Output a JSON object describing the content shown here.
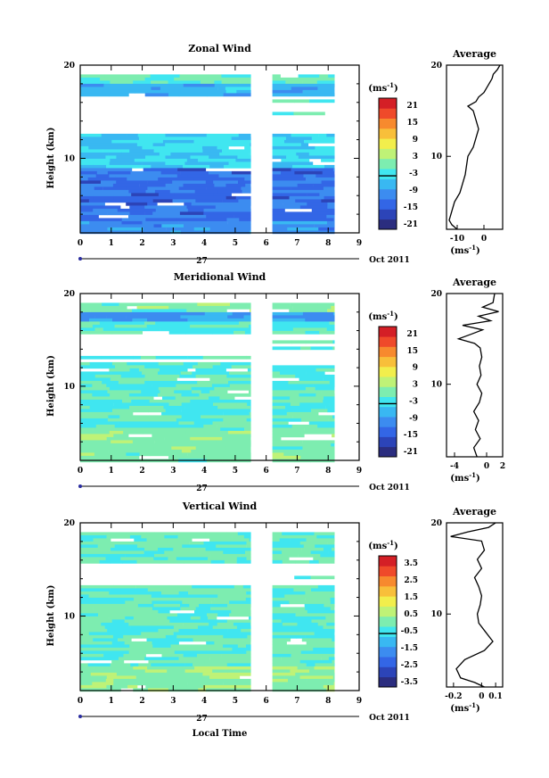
{
  "axis_units": {
    "date_label": "27",
    "month_label": "Oct 2011",
    "xlabel": "Local Time",
    "ylabel": "Height (km)",
    "unit_label": "(ms",
    "unit_exp": "-1",
    "unit_close": ")"
  },
  "chart_data": [
    {
      "type": "heatmap",
      "title": "Zonal Wind",
      "ylabel": "Height (km)",
      "x_ticks": [
        "0",
        "1",
        "2",
        "3",
        "4",
        "5",
        "6",
        "7",
        "8",
        "9"
      ],
      "y_ticks": [
        "10",
        "20"
      ],
      "xlim": [
        0,
        9
      ],
      "ylim": [
        2,
        20
      ],
      "data_gap_hours": [
        5.5,
        6.2
      ],
      "data_end_hour": 8.2,
      "colorbar": {
        "label": "(ms-1)",
        "ticks": [
          "21",
          "15",
          "9",
          "3",
          "-3",
          "-9",
          "-15",
          "-21"
        ]
      },
      "profile": {
        "title": "Average",
        "x_ticks": [
          "-10",
          "0"
        ],
        "y_ticks": [
          "10",
          "20"
        ],
        "xlabel": "(ms-1)",
        "xlim": [
          -14,
          7
        ],
        "heights": [
          2,
          2.5,
          3,
          4,
          5,
          6,
          7,
          8,
          9,
          10,
          11,
          12,
          13,
          14,
          15,
          15.5,
          16,
          16.5,
          17,
          17.5,
          18,
          18.5,
          19,
          19.5,
          20
        ],
        "values": [
          -10,
          -12,
          -13,
          -12,
          -11,
          -9,
          -8,
          -7,
          -6.5,
          -6,
          -4,
          -3,
          -2,
          -3,
          -4,
          -6,
          -3,
          -2,
          0,
          1,
          2,
          3,
          3.5,
          5,
          6
        ]
      }
    },
    {
      "type": "heatmap",
      "title": "Meridional Wind",
      "ylabel": "Height (km)",
      "x_ticks": [
        "0",
        "1",
        "2",
        "3",
        "4",
        "5",
        "6",
        "7",
        "8",
        "9"
      ],
      "y_ticks": [
        "10",
        "20"
      ],
      "xlim": [
        0,
        9
      ],
      "ylim": [
        2,
        20
      ],
      "data_gap_hours": [
        5.5,
        6.2
      ],
      "data_end_hour": 8.2,
      "colorbar": {
        "label": "(ms-1)",
        "ticks": [
          "21",
          "15",
          "9",
          "3",
          "-3",
          "-9",
          "-15",
          "-21"
        ]
      },
      "profile": {
        "title": "Average",
        "x_ticks": [
          "-4",
          "0",
          "2"
        ],
        "y_ticks": [
          "10",
          "20"
        ],
        "xlabel": "(ms-1)",
        "xlim": [
          -5,
          2
        ],
        "heights": [
          2,
          3,
          4,
          5,
          6,
          7,
          8,
          9,
          10,
          11,
          12,
          13,
          14,
          14.5,
          15,
          15.5,
          16,
          16.5,
          17,
          17.5,
          18,
          18.5,
          19,
          20
        ],
        "values": [
          -1.2,
          -1.6,
          -0.8,
          -1.4,
          -1.0,
          -1.6,
          -0.9,
          -0.6,
          -1.2,
          -0.7,
          -0.9,
          -0.6,
          -0.8,
          -1.5,
          -3.5,
          -2.0,
          -0.5,
          -3.0,
          0.5,
          -1.0,
          1.5,
          -0.5,
          0.8,
          1.0
        ]
      }
    },
    {
      "type": "heatmap",
      "title": "Vertical Wind",
      "xlabel": "Local Time",
      "ylabel": "Height (km)",
      "x_ticks": [
        "0",
        "1",
        "2",
        "3",
        "4",
        "5",
        "6",
        "7",
        "8",
        "9"
      ],
      "y_ticks": [
        "10",
        "20"
      ],
      "xlim": [
        0,
        9
      ],
      "ylim": [
        2,
        20
      ],
      "data_gap_hours": [
        5.5,
        6.2
      ],
      "data_end_hour": 8.2,
      "colorbar": {
        "label": "(ms-1)",
        "ticks": [
          "3.5",
          "2.5",
          "1.5",
          "0.5",
          "-0.5",
          "-1.5",
          "-2.5",
          "-3.5"
        ]
      },
      "profile": {
        "title": "Average",
        "x_ticks": [
          "-0.2",
          "0",
          "0.1"
        ],
        "y_ticks": [
          "10",
          "20"
        ],
        "xlabel": "(ms-1)",
        "xlim": [
          -0.25,
          0.15
        ],
        "heights": [
          2,
          2.5,
          3,
          4,
          5,
          6,
          7,
          8,
          9,
          10,
          11,
          12,
          13,
          14,
          15,
          16,
          17,
          18,
          18.5,
          19,
          19.5,
          20
        ],
        "values": [
          0.02,
          -0.05,
          -0.15,
          -0.18,
          -0.12,
          0.02,
          0.08,
          0.03,
          -0.02,
          -0.03,
          -0.01,
          0.0,
          -0.02,
          -0.05,
          0.0,
          -0.03,
          0.02,
          0.0,
          -0.22,
          -0.1,
          0.05,
          0.1
        ]
      }
    }
  ]
}
